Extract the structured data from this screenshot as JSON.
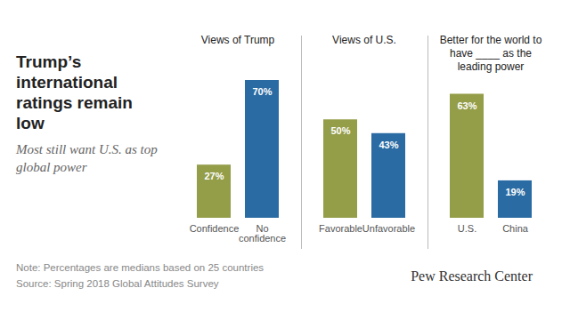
{
  "title": "Trump’s international ratings remain low",
  "subtitle": "Most still want U.S. as top global power",
  "note": "Note: Percentages are medians based on 25 countries",
  "source": "Source: Spring 2018 Global Attitudes Survey",
  "credit": "Pew Research Center",
  "chart_data": [
    {
      "type": "bar",
      "title": "Views of Trump",
      "categories": [
        "Confidence",
        "No confidence"
      ],
      "values": [
        27,
        70
      ],
      "value_labels": [
        "27%",
        "70%"
      ],
      "colors": [
        "#949d48",
        "#2a6ba3"
      ],
      "ylim": [
        0,
        70
      ],
      "data_labels": true,
      "tick_labels": "x"
    },
    {
      "type": "bar",
      "title": "Views of U.S.",
      "categories": [
        "Favorable",
        "Unfavorable"
      ],
      "values": [
        50,
        43
      ],
      "value_labels": [
        "50%",
        "43%"
      ],
      "colors": [
        "#949d48",
        "#2a6ba3"
      ],
      "ylim": [
        0,
        70
      ],
      "data_labels": true,
      "tick_labels": "x"
    },
    {
      "type": "bar",
      "title": "Better for the world to have ____ as the leading power",
      "categories": [
        "U.S.",
        "China"
      ],
      "values": [
        63,
        19
      ],
      "value_labels": [
        "63%",
        "19%"
      ],
      "colors": [
        "#949d48",
        "#2a6ba3"
      ],
      "ylim": [
        0,
        70
      ],
      "data_labels": true,
      "tick_labels": "x"
    }
  ]
}
